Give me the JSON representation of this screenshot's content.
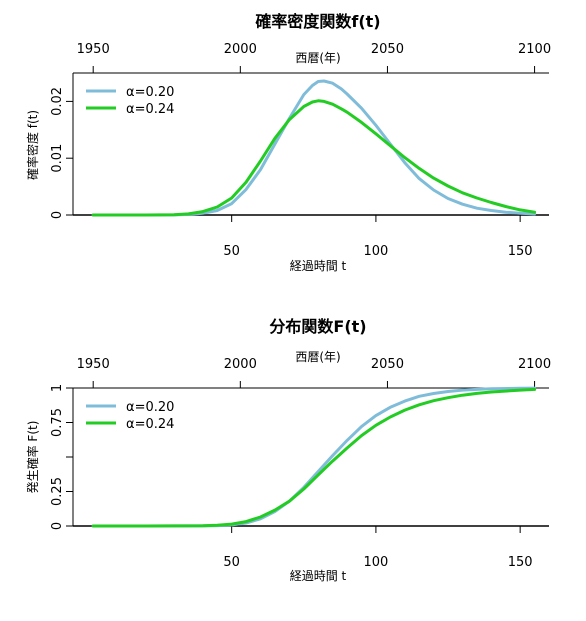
{
  "chart_data": [
    {
      "type": "line",
      "title": "確率密度関数f(t)",
      "xlabel": "経過時間 t",
      "ylabel": "確率密度 f(t)",
      "top_axis_label": "西暦(年)",
      "top_ticks": [
        "1950",
        "2000",
        "2050",
        "2100"
      ],
      "top_tick_values": [
        1950,
        2000,
        2050,
        2100
      ],
      "x_ticks": [
        50,
        100,
        150
      ],
      "y_ticks": [
        0,
        0.01,
        0.02
      ],
      "y_tick_labels": [
        "0",
        "0.01",
        "0.02"
      ],
      "xlim": [
        -5,
        160
      ],
      "ylim": [
        0,
        0.025
      ],
      "legend_position": "top-left",
      "x": [
        2,
        10,
        20,
        30,
        35,
        40,
        45,
        50,
        55,
        60,
        65,
        70,
        75,
        78,
        80,
        82,
        85,
        88,
        90,
        95,
        100,
        105,
        110,
        115,
        120,
        125,
        130,
        135,
        140,
        145,
        150,
        155
      ],
      "series": [
        {
          "name": "α=0.20",
          "color": "#7fbcd9",
          "values": [
            0,
            0,
            0,
            2e-05,
            0.0001,
            0.0003,
            0.0008,
            0.002,
            0.0045,
            0.008,
            0.0125,
            0.017,
            0.0212,
            0.0228,
            0.0235,
            0.0236,
            0.0232,
            0.0222,
            0.0213,
            0.0188,
            0.0158,
            0.0125,
            0.0092,
            0.0064,
            0.0044,
            0.0029,
            0.0019,
            0.0012,
            0.0008,
            0.0005,
            0.0003,
            0.0002
          ]
        },
        {
          "name": "α=0.24",
          "color": "#22cc22",
          "values": [
            0,
            0,
            0,
            5e-05,
            0.0002,
            0.0006,
            0.0014,
            0.003,
            0.0058,
            0.0095,
            0.0135,
            0.0168,
            0.0191,
            0.0199,
            0.0201,
            0.02,
            0.0195,
            0.0187,
            0.0181,
            0.0163,
            0.0143,
            0.0122,
            0.0101,
            0.0082,
            0.0065,
            0.0051,
            0.0039,
            0.003,
            0.0022,
            0.0015,
            0.0009,
            0.0005
          ]
        }
      ]
    },
    {
      "type": "line",
      "title": "分布関数F(t)",
      "xlabel": "経過時間 t",
      "ylabel": "発生確率 F(t)",
      "top_axis_label": "西暦(年)",
      "top_ticks": [
        "1950",
        "2000",
        "2050",
        "2100"
      ],
      "top_tick_values": [
        1950,
        2000,
        2050,
        2100
      ],
      "x_ticks": [
        50,
        100,
        150
      ],
      "y_ticks": [
        0,
        0.25,
        0.5,
        0.75,
        1
      ],
      "y_tick_labels": [
        "0",
        "0.25",
        "",
        "0.75",
        "1"
      ],
      "xlim": [
        -5,
        160
      ],
      "ylim": [
        0,
        1
      ],
      "legend_position": "top-left",
      "x": [
        2,
        20,
        40,
        45,
        50,
        55,
        60,
        65,
        70,
        75,
        80,
        85,
        90,
        95,
        100,
        105,
        110,
        115,
        120,
        125,
        130,
        135,
        140,
        150,
        155
      ],
      "series": [
        {
          "name": "α=0.20",
          "color": "#7fbcd9",
          "values": [
            0,
            0,
            0.001,
            0.003,
            0.008,
            0.022,
            0.052,
            0.105,
            0.18,
            0.28,
            0.395,
            0.51,
            0.62,
            0.72,
            0.8,
            0.86,
            0.905,
            0.94,
            0.96,
            0.975,
            0.985,
            0.99,
            0.994,
            0.998,
            0.999
          ]
        },
        {
          "name": "α=0.24",
          "color": "#22cc22",
          "values": [
            0,
            0,
            0.002,
            0.006,
            0.014,
            0.032,
            0.065,
            0.115,
            0.18,
            0.268,
            0.37,
            0.47,
            0.565,
            0.655,
            0.73,
            0.79,
            0.84,
            0.878,
            0.908,
            0.93,
            0.948,
            0.961,
            0.971,
            0.985,
            0.99
          ]
        }
      ]
    }
  ]
}
